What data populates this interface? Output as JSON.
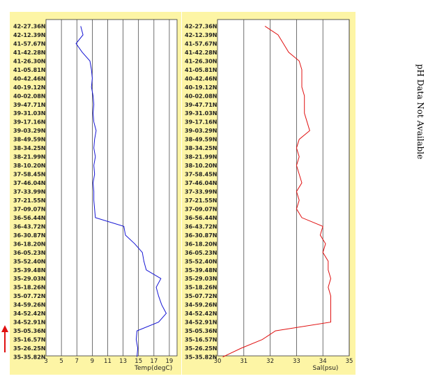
{
  "chart_data": [
    {
      "type": "line",
      "xlabel": "Temp(degC)",
      "xlim": [
        3,
        20
      ],
      "xticks": [
        3,
        5,
        7,
        9,
        11,
        13,
        15,
        17,
        19
      ],
      "series_color": "#1414d4",
      "latitudes": [
        "42-27.36N",
        "42-12.39N",
        "41-57.67N",
        "41-42.28N",
        "41-26.30N",
        "41-05.81N",
        "40-42.46N",
        "40-19.12N",
        "40-02.08N",
        "39-47.71N",
        "39-31.03N",
        "39-17.16N",
        "39-03.29N",
        "38-49.59N",
        "38-34.25N",
        "38-21.99N",
        "38-10.20N",
        "37-58.45N",
        "37-46.04N",
        "37-33.99N",
        "37-21.55N",
        "37-09.07N",
        "36-56.44N",
        "36-43.72N",
        "36-30.87N",
        "36-18.20N",
        "36-05.23N",
        "35-52.40N",
        "35-39.48N",
        "35-29.03N",
        "35-18.26N",
        "35-07.72N",
        "34-59.26N",
        "34-52.42N",
        "34-52.91N",
        "35-05.36N",
        "35-16.57N",
        "35-26.25N",
        "35-35.82N"
      ],
      "values": [
        7.5,
        7.8,
        6.9,
        7.7,
        8.7,
        8.9,
        9.0,
        8.9,
        9.1,
        9.2,
        9.1,
        9.2,
        9.5,
        9.3,
        9.2,
        9.4,
        9.2,
        9.3,
        9.1,
        9.2,
        9.2,
        9.3,
        9.4,
        13.1,
        13.3,
        14.5,
        15.5,
        15.7,
        16.0,
        17.9,
        17.3,
        17.6,
        18.0,
        18.6,
        17.6,
        14.8,
        14.7,
        14.9,
        14.8
      ]
    },
    {
      "type": "line",
      "xlabel": "Sal(psu)",
      "xlim": [
        30,
        35
      ],
      "xticks": [
        30,
        31,
        32,
        33,
        34,
        35
      ],
      "series_color": "#e01010",
      "latitudes": [
        "42-27.36N",
        "42-12.39N",
        "41-57.67N",
        "41-42.28N",
        "41-26.30N",
        "41-05.81N",
        "40-42.46N",
        "40-19.12N",
        "40-02.08N",
        "39-47.71N",
        "39-31.03N",
        "39-17.16N",
        "39-03.29N",
        "38-49.59N",
        "38-34.25N",
        "38-21.99N",
        "38-10.20N",
        "37-58.45N",
        "37-46.04N",
        "37-33.99N",
        "37-21.55N",
        "37-09.07N",
        "36-56.44N",
        "36-43.72N",
        "36-30.87N",
        "36-18.20N",
        "36-05.23N",
        "35-52.40N",
        "35-39.48N",
        "35-29.03N",
        "35-18.26N",
        "35-07.72N",
        "34-59.26N",
        "34-52.42N",
        "34-52.91N",
        "35-05.36N",
        "35-16.57N",
        "35-26.25N",
        "35-35.82N"
      ],
      "values": [
        31.8,
        32.3,
        32.5,
        32.7,
        33.1,
        33.2,
        33.2,
        33.2,
        33.3,
        33.3,
        33.3,
        33.4,
        33.5,
        33.1,
        33.0,
        33.1,
        33.0,
        33.1,
        33.2,
        33.0,
        33.1,
        33.0,
        33.2,
        34.0,
        33.9,
        34.1,
        34.0,
        34.2,
        34.2,
        34.3,
        34.2,
        34.3,
        34.3,
        34.3,
        34.3,
        32.2,
        31.7,
        30.9,
        30.2
      ]
    }
  ],
  "side_note": "pH Data Not Available",
  "colors": {
    "panel_bg": "#fdf5a5",
    "plot_bg": "#ffffff",
    "grid": "#333333",
    "arrow": "#e01010"
  }
}
